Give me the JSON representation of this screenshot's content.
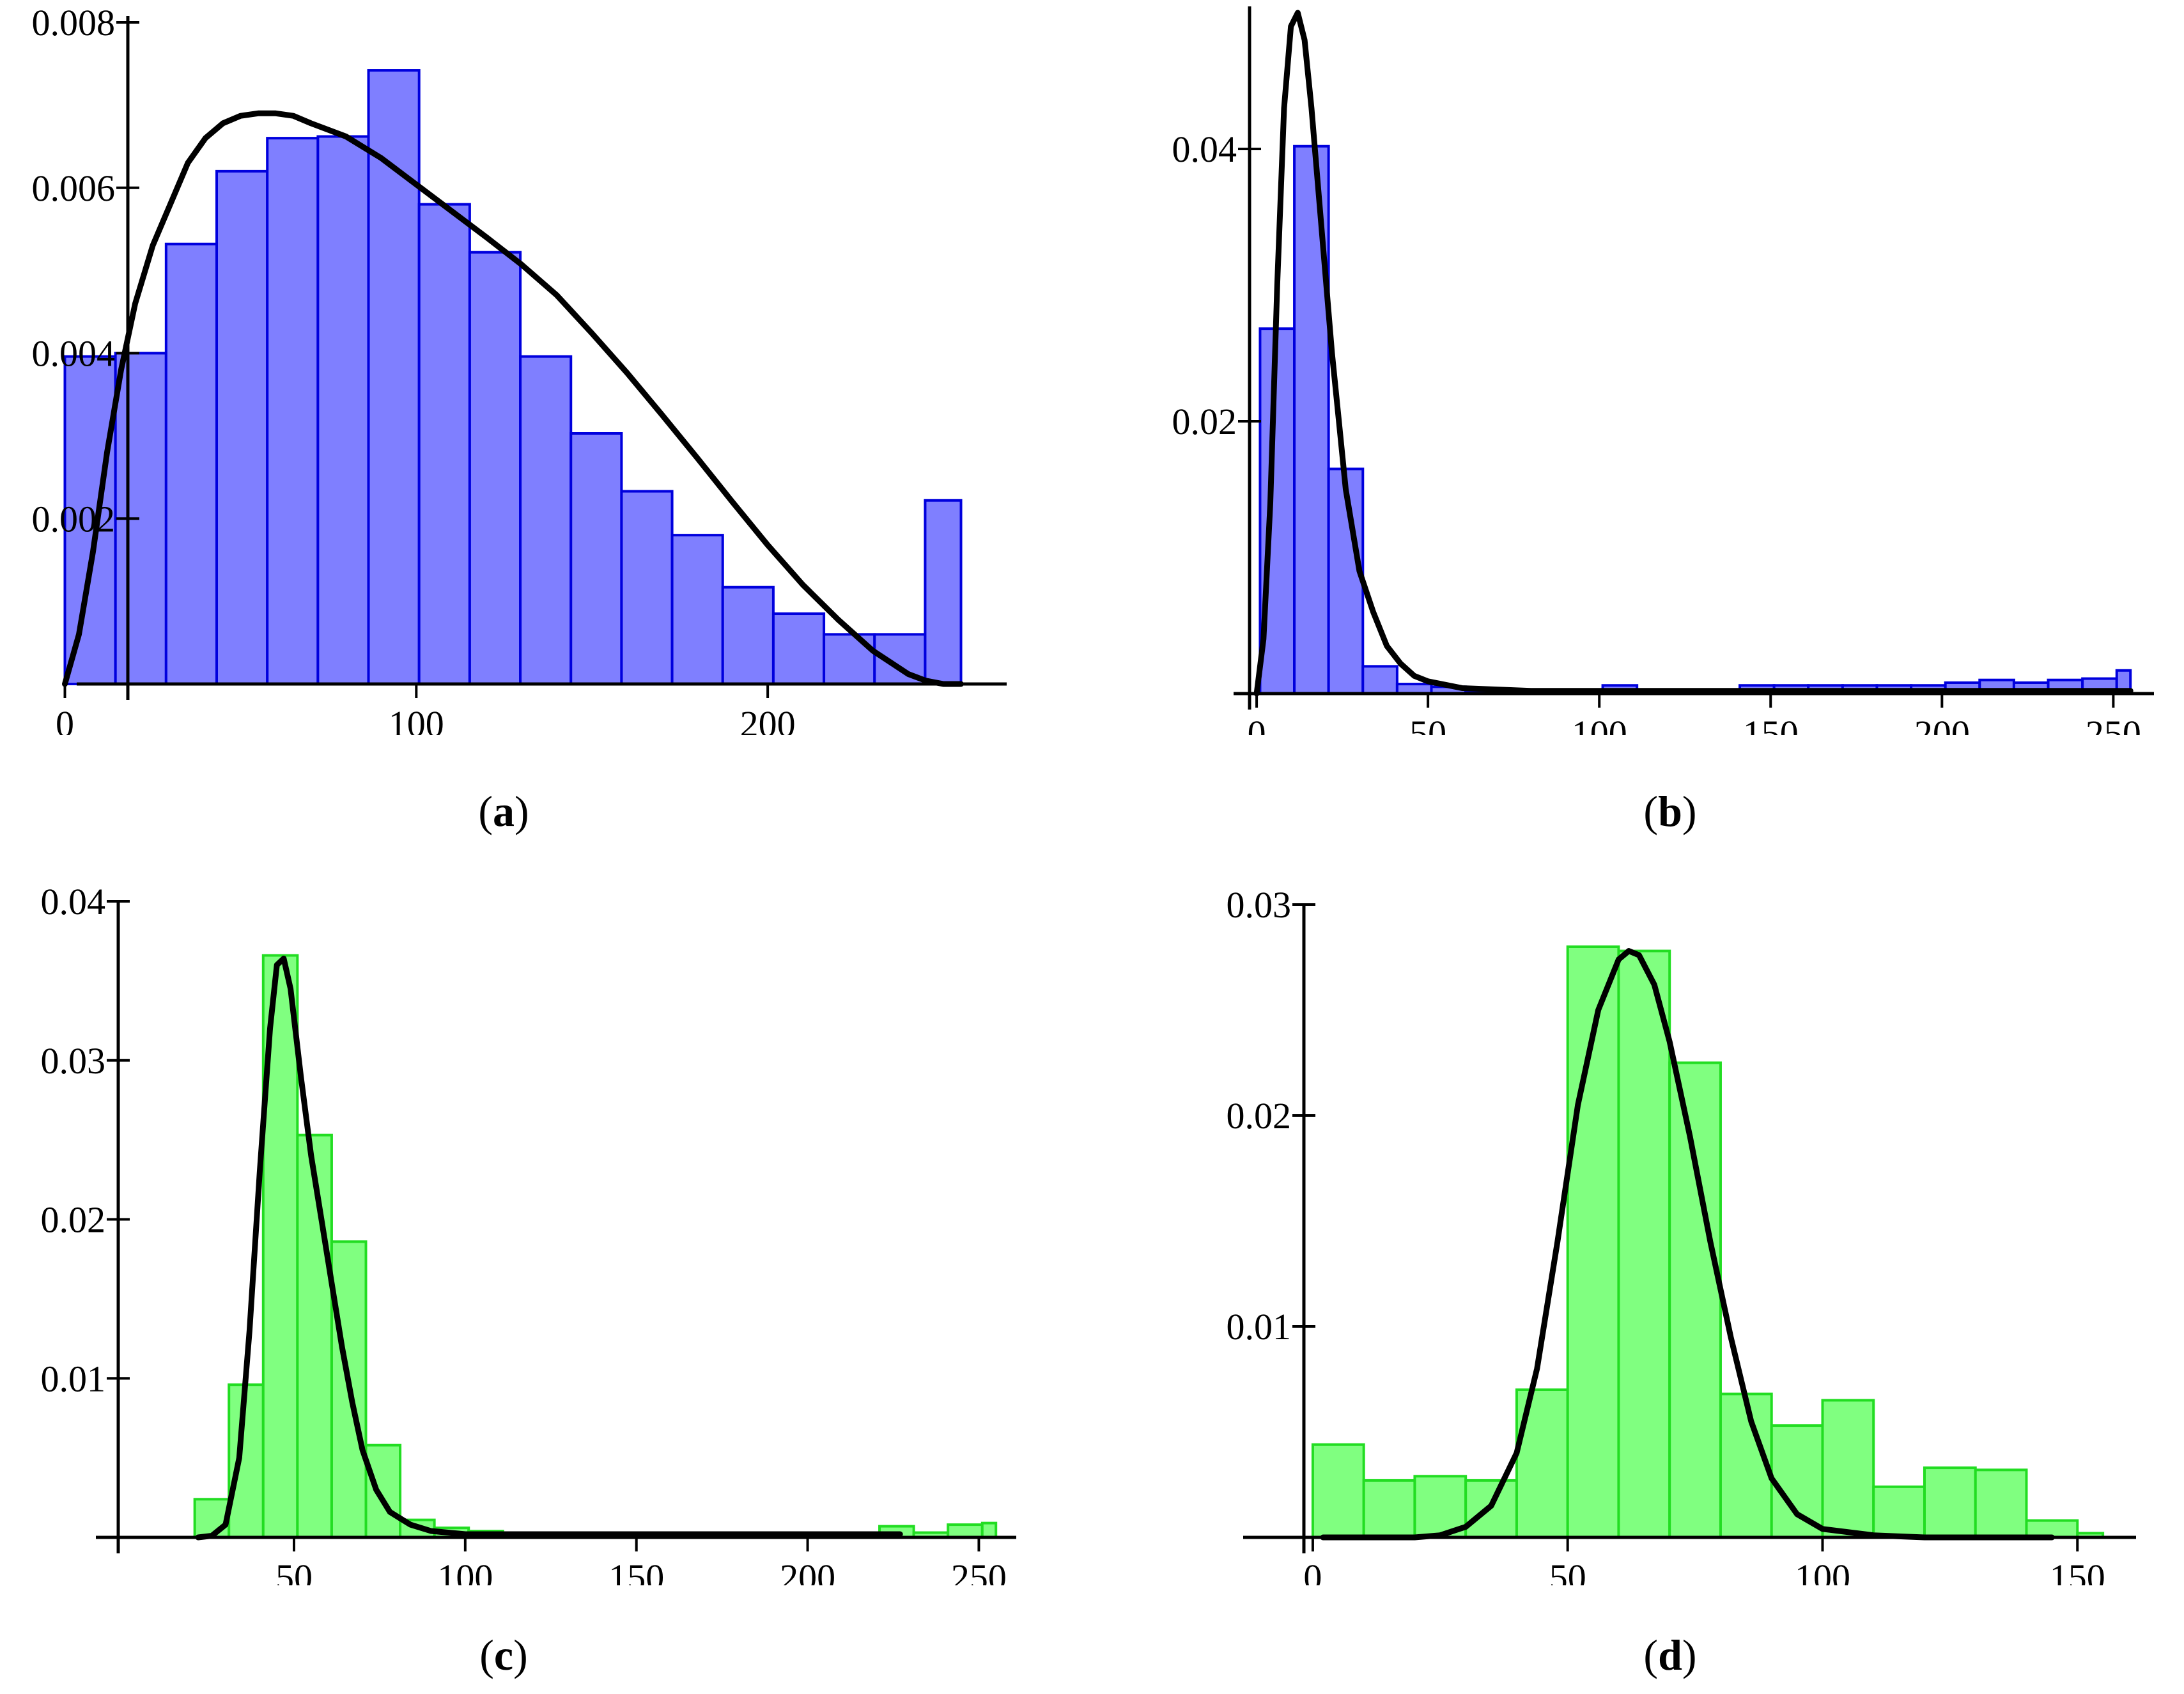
{
  "colors": {
    "blue_fill": "#7f7fff",
    "blue_stroke": "#0000dd",
    "green_fill": "#80ff80",
    "green_stroke": "#22dd22",
    "curve": "#000000"
  },
  "chart_data": [
    {
      "id": "a",
      "type": "bar",
      "caption": {
        "open": "(",
        "letter": "a",
        "close": ")"
      },
      "xlim": [
        -3,
        268
      ],
      "ylim": [
        0,
        0.008
      ],
      "xticks": [
        0,
        100,
        200
      ],
      "xtick_labels": [
        "0",
        "100",
        "200"
      ],
      "yticks": [
        0.002,
        0.004,
        0.006,
        0.008
      ],
      "ytick_labels": [
        "0.002",
        "0.004",
        "0.006",
        "0.008"
      ],
      "bins": [
        [
          0,
          14.4,
          0.00396
        ],
        [
          14.4,
          28.8,
          0.004
        ],
        [
          28.8,
          43.2,
          0.00532
        ],
        [
          43.2,
          57.6,
          0.0062
        ],
        [
          57.6,
          72.0,
          0.0066
        ],
        [
          72.0,
          86.4,
          0.00662
        ],
        [
          86.4,
          100.8,
          0.00742
        ],
        [
          100.8,
          115.2,
          0.0058
        ],
        [
          115.2,
          129.6,
          0.00522
        ],
        [
          129.6,
          144.0,
          0.00396
        ],
        [
          144.0,
          158.4,
          0.00303
        ],
        [
          158.4,
          172.8,
          0.00233
        ],
        [
          172.8,
          187.2,
          0.0018
        ],
        [
          187.2,
          201.6,
          0.00117
        ],
        [
          201.6,
          216.0,
          0.00085
        ],
        [
          216.0,
          230.4,
          0.0006
        ],
        [
          230.4,
          244.8,
          0.0006
        ],
        [
          244.8,
          255.0,
          0.00222
        ]
      ],
      "curve": [
        [
          0,
          0
        ],
        [
          4,
          0.0006
        ],
        [
          8,
          0.0016
        ],
        [
          12,
          0.0028
        ],
        [
          16,
          0.0038
        ],
        [
          20,
          0.0046
        ],
        [
          25,
          0.0053
        ],
        [
          30,
          0.0058
        ],
        [
          35,
          0.0063
        ],
        [
          40,
          0.0066
        ],
        [
          45,
          0.00678
        ],
        [
          50,
          0.00687
        ],
        [
          55,
          0.0069
        ],
        [
          60,
          0.0069
        ],
        [
          65,
          0.00687
        ],
        [
          70,
          0.00678
        ],
        [
          80,
          0.00662
        ],
        [
          90,
          0.00636
        ],
        [
          100,
          0.00604
        ],
        [
          110,
          0.00572
        ],
        [
          120,
          0.0054
        ],
        [
          130,
          0.00507
        ],
        [
          140,
          0.0047
        ],
        [
          150,
          0.00424
        ],
        [
          160,
          0.00376
        ],
        [
          170,
          0.00325
        ],
        [
          180,
          0.00273
        ],
        [
          190,
          0.0022
        ],
        [
          200,
          0.00168
        ],
        [
          210,
          0.0012
        ],
        [
          220,
          0.00078
        ],
        [
          230,
          0.0004
        ],
        [
          240,
          0.00012
        ],
        [
          245,
          4e-05
        ],
        [
          250,
          0.0
        ],
        [
          255,
          0.0
        ]
      ]
    },
    {
      "id": "b",
      "type": "bar",
      "caption": {
        "open": "(",
        "letter": "b",
        "close": ")"
      },
      "xlim": [
        -3,
        260
      ],
      "ylim": [
        0,
        0.05
      ],
      "xticks": [
        0,
        50,
        100,
        150,
        200,
        250
      ],
      "xtick_labels": [
        "0",
        "50",
        "100",
        "150",
        "200",
        "250"
      ],
      "yticks": [
        0.02,
        0.04
      ],
      "ytick_labels": [
        "0.02",
        "0.04"
      ],
      "bins": [
        [
          1,
          11,
          0.0268
        ],
        [
          11,
          21,
          0.0402
        ],
        [
          21,
          31,
          0.0165
        ],
        [
          31,
          41,
          0.002
        ],
        [
          41,
          51,
          0.0007
        ],
        [
          51,
          61,
          0.0005
        ],
        [
          61,
          71,
          0.0002
        ],
        [
          71,
          81,
          0.0002
        ],
        [
          81,
          91,
          0.0002
        ],
        [
          91,
          101,
          0.0003
        ],
        [
          101,
          111,
          0.0006
        ],
        [
          111,
          121,
          0.0003
        ],
        [
          121,
          131,
          0.0002
        ],
        [
          131,
          141,
          0.0003
        ],
        [
          141,
          151,
          0.0006
        ],
        [
          151,
          161,
          0.0006
        ],
        [
          161,
          171,
          0.0006
        ],
        [
          171,
          181,
          0.0006
        ],
        [
          181,
          191,
          0.0006
        ],
        [
          191,
          201,
          0.0006
        ],
        [
          201,
          211,
          0.0008
        ],
        [
          211,
          221,
          0.001
        ],
        [
          221,
          231,
          0.0008
        ],
        [
          231,
          241,
          0.001
        ],
        [
          241,
          251,
          0.0011
        ],
        [
          251,
          255,
          0.0017
        ]
      ],
      "curve": [
        [
          0,
          0
        ],
        [
          2,
          0.004
        ],
        [
          4,
          0.014
        ],
        [
          6,
          0.03
        ],
        [
          8,
          0.043
        ],
        [
          10,
          0.049
        ],
        [
          12,
          0.05
        ],
        [
          14,
          0.048
        ],
        [
          16,
          0.043
        ],
        [
          18,
          0.037
        ],
        [
          20,
          0.031
        ],
        [
          22,
          0.025
        ],
        [
          24,
          0.02
        ],
        [
          26,
          0.015
        ],
        [
          28,
          0.012
        ],
        [
          30,
          0.009
        ],
        [
          34,
          0.006
        ],
        [
          38,
          0.0035
        ],
        [
          42,
          0.0022
        ],
        [
          46,
          0.0013
        ],
        [
          50,
          0.0009
        ],
        [
          60,
          0.0004
        ],
        [
          80,
          0.0002
        ],
        [
          100,
          0.0002
        ],
        [
          150,
          0.0002
        ],
        [
          200,
          0.0002
        ],
        [
          255,
          0.0002
        ]
      ]
    },
    {
      "id": "c",
      "type": "bar",
      "caption": {
        "open": "(",
        "letter": "c",
        "close": ")"
      },
      "xlim": [
        -6,
        260
      ],
      "ylim": [
        0,
        0.04
      ],
      "xticks": [
        50,
        100,
        150,
        200,
        250
      ],
      "xtick_labels": [
        "50",
        "100",
        "150",
        "200",
        "250"
      ],
      "yticks": [
        0.01,
        0.02,
        0.03,
        0.04
      ],
      "ytick_labels": [
        "0.01",
        "0.02",
        "0.03",
        "0.04"
      ],
      "bins": [
        [
          21,
          31,
          0.0024
        ],
        [
          31,
          41,
          0.0096
        ],
        [
          41,
          51,
          0.0366
        ],
        [
          51,
          61,
          0.0253
        ],
        [
          61,
          71,
          0.0186
        ],
        [
          71,
          81,
          0.0058
        ],
        [
          81,
          91,
          0.0011
        ],
        [
          91,
          101,
          0.0006
        ],
        [
          101,
          111,
          0.0004
        ],
        [
          111,
          121,
          0.0003
        ],
        [
          121,
          131,
          0.0003
        ],
        [
          131,
          141,
          0.0003
        ],
        [
          141,
          151,
          0.0003
        ],
        [
          151,
          161,
          0.0003
        ],
        [
          161,
          171,
          0.0003
        ],
        [
          171,
          181,
          0.0003
        ],
        [
          181,
          191,
          0.0003
        ],
        [
          191,
          201,
          0.0003
        ],
        [
          201,
          211,
          0.0003
        ],
        [
          211,
          221,
          0.0003
        ],
        [
          221,
          231,
          0.0007
        ],
        [
          231,
          241,
          0.0003
        ],
        [
          241,
          251,
          0.0008
        ],
        [
          251,
          255,
          0.0009
        ]
      ],
      "curve": [
        [
          22,
          0
        ],
        [
          26,
          0.0001
        ],
        [
          30,
          0.0008
        ],
        [
          34,
          0.005
        ],
        [
          37,
          0.013
        ],
        [
          40,
          0.023
        ],
        [
          43,
          0.032
        ],
        [
          45,
          0.036
        ],
        [
          47,
          0.0364
        ],
        [
          49,
          0.0345
        ],
        [
          52,
          0.029
        ],
        [
          55,
          0.024
        ],
        [
          58,
          0.02
        ],
        [
          61,
          0.016
        ],
        [
          64,
          0.012
        ],
        [
          67,
          0.0085
        ],
        [
          70,
          0.0055
        ],
        [
          74,
          0.003
        ],
        [
          78,
          0.0016
        ],
        [
          84,
          0.0008
        ],
        [
          90,
          0.0004
        ],
        [
          100,
          0.0002
        ],
        [
          150,
          0.0002
        ],
        [
          200,
          0.0002
        ],
        [
          227,
          0.0002
        ]
      ]
    },
    {
      "id": "d",
      "type": "bar",
      "caption": {
        "open": "(",
        "letter": "d",
        "close": ")"
      },
      "xlim": [
        -3,
        160
      ],
      "ylim": [
        0,
        0.03
      ],
      "xticks": [
        0,
        50,
        100,
        150
      ],
      "xtick_labels": [
        "0",
        "50",
        "100",
        "150"
      ],
      "yticks": [
        0.01,
        0.02,
        0.03
      ],
      "ytick_labels": [
        "0.01",
        "0.02",
        "0.03"
      ],
      "bins": [
        [
          0,
          10,
          0.0044
        ],
        [
          10,
          20,
          0.0027
        ],
        [
          20,
          30,
          0.0029
        ],
        [
          30,
          40,
          0.0027
        ],
        [
          40,
          50,
          0.007
        ],
        [
          50,
          60,
          0.028
        ],
        [
          60,
          70,
          0.0278
        ],
        [
          70,
          80,
          0.0225
        ],
        [
          80,
          90,
          0.0068
        ],
        [
          90,
          100,
          0.0053
        ],
        [
          100,
          110,
          0.0065
        ],
        [
          110,
          120,
          0.0024
        ],
        [
          120,
          130,
          0.0033
        ],
        [
          130,
          140,
          0.0032
        ],
        [
          140,
          150,
          0.0008
        ],
        [
          150,
          155,
          0.0002
        ]
      ],
      "curve": [
        [
          2,
          0
        ],
        [
          20,
          0
        ],
        [
          25,
          0.0001
        ],
        [
          30,
          0.0005
        ],
        [
          35,
          0.0015
        ],
        [
          40,
          0.004
        ],
        [
          44,
          0.008
        ],
        [
          48,
          0.014
        ],
        [
          52,
          0.0205
        ],
        [
          56,
          0.025
        ],
        [
          60,
          0.0274
        ],
        [
          62,
          0.0278
        ],
        [
          64,
          0.0276
        ],
        [
          67,
          0.0262
        ],
        [
          70,
          0.0235
        ],
        [
          74,
          0.019
        ],
        [
          78,
          0.014
        ],
        [
          82,
          0.0095
        ],
        [
          86,
          0.0055
        ],
        [
          90,
          0.0028
        ],
        [
          95,
          0.0011
        ],
        [
          100,
          0.0004
        ],
        [
          110,
          0.0001
        ],
        [
          120,
          0
        ],
        [
          145,
          0
        ]
      ]
    }
  ]
}
